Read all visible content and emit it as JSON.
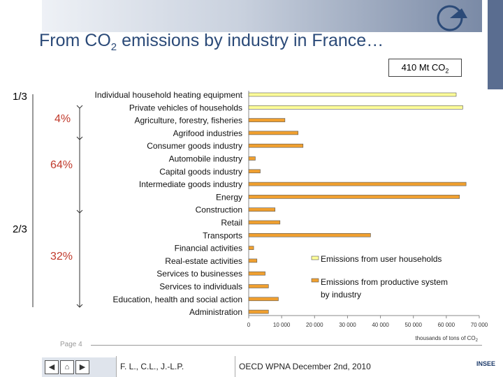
{
  "header": {
    "title_prefix": "From CO",
    "title_sub": "2",
    "title_suffix": " emissions by industry in France…",
    "total_prefix": "410 Mt CO",
    "total_sub": "2"
  },
  "side": {
    "one_third": "1/3",
    "two_thirds": "2/3",
    "pct_4": "4%",
    "pct_64": "64%",
    "pct_32": "32%"
  },
  "chart_data": {
    "type": "bar",
    "orientation": "horizontal",
    "categories": [
      "Individual household heating equipment",
      "Private vehicles of households",
      "Agriculture, forestry, fisheries",
      "Agrifood industries",
      "Consumer goods industry",
      "Automobile industry",
      "Capital goods industry",
      "Intermediate goods industry",
      "Energy",
      "Construction",
      "Retail",
      "Transports",
      "Financial activities",
      "Real-estate activities",
      "Services to businesses",
      "Services to individuals",
      "Education, health and social action",
      "Administration"
    ],
    "series": [
      {
        "name": "Emissions from user households",
        "color": "#ffff99",
        "values": [
          63000,
          65000,
          null,
          null,
          null,
          null,
          null,
          null,
          null,
          null,
          null,
          null,
          null,
          null,
          null,
          null,
          null,
          null
        ]
      },
      {
        "name": "Emissions from productive system by industry",
        "color": "#f0a030",
        "values": [
          null,
          null,
          11000,
          15000,
          16500,
          2000,
          3500,
          66000,
          64000,
          8000,
          9500,
          37000,
          1500,
          2500,
          5000,
          6000,
          9000,
          6000
        ]
      }
    ],
    "xlim": [
      0,
      70000
    ],
    "xticks": [
      "0",
      "10 000",
      "20 000",
      "30 000",
      "40 000",
      "50 000",
      "60 000",
      "70 000"
    ],
    "xlabel_prefix": "thousands of tons of CO",
    "xlabel_sub": "2",
    "legend_position": "bottom-right"
  },
  "footer": {
    "page": "Page 4",
    "author": "F. L., C.L., J.-L.P.",
    "conference": "OECD WPNA December 2nd, 2010",
    "logo": "INSEE"
  },
  "nav": {
    "prev_icon": "◀",
    "home_icon": "⌂",
    "next_icon": "▶"
  }
}
